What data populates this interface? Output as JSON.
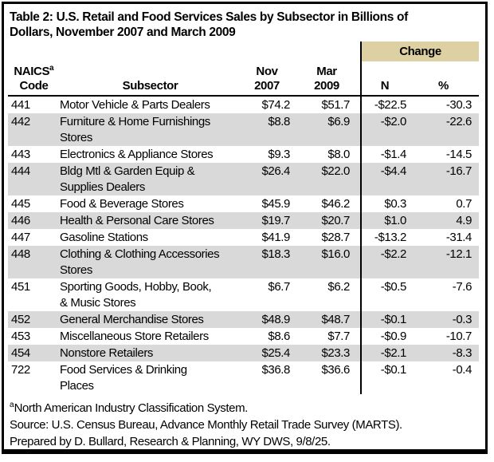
{
  "title": "Table 2: U.S. Retail and Food Services Sales by Subsector in Billions of\nDollars, November 2007 and March 2009",
  "table": {
    "change_label": "Change",
    "columns": {
      "naics": "NAICS",
      "naics_sup": "a",
      "code": "Code",
      "subsector": "Subsector",
      "nov_month": "Nov",
      "nov_year": "2007",
      "mar_month": "Mar",
      "mar_year": "2009",
      "n": "N",
      "pct": "%"
    },
    "rows": [
      {
        "code": "441",
        "subsector": "Motor Vehicle & Parts Dealers",
        "nov": "$74.2",
        "mar": "$51.7",
        "n": "-$22.5",
        "pct": "-30.3",
        "shaded": false
      },
      {
        "code": "442",
        "subsector": "Furniture & Home Furnishings\nStores",
        "nov": "$8.8",
        "mar": "$6.9",
        "n": "-$2.0",
        "pct": "-22.6",
        "shaded": true
      },
      {
        "code": "443",
        "subsector": "Electronics & Appliance Stores",
        "nov": "$9.3",
        "mar": "$8.0",
        "n": "-$1.4",
        "pct": "-14.5",
        "shaded": false
      },
      {
        "code": "444",
        "subsector": "Bldg Mtl & Garden Equip &\nSupplies Dealers",
        "nov": "$26.4",
        "mar": "$22.0",
        "n": "-$4.4",
        "pct": "-16.7",
        "shaded": true
      },
      {
        "code": "445",
        "subsector": "Food & Beverage Stores",
        "nov": "$45.9",
        "mar": "$46.2",
        "n": "$0.3",
        "pct": "0.7",
        "shaded": false
      },
      {
        "code": "446",
        "subsector": "Health & Personal Care Stores",
        "nov": "$19.7",
        "mar": "$20.7",
        "n": "$1.0",
        "pct": "4.9",
        "shaded": true
      },
      {
        "code": "447",
        "subsector": "Gasoline Stations",
        "nov": "$41.9",
        "mar": "$28.7",
        "n": "-$13.2",
        "pct": "-31.4",
        "shaded": false
      },
      {
        "code": "448",
        "subsector": "Clothing & Clothing Accessories\nStores",
        "nov": "$18.3",
        "mar": "$16.0",
        "n": "-$2.2",
        "pct": "-12.1",
        "shaded": true
      },
      {
        "code": "451",
        "subsector": "Sporting Goods, Hobby, Book,\n& Music Stores",
        "nov": "$6.7",
        "mar": "$6.2",
        "n": "-$0.5",
        "pct": "-7.6",
        "shaded": false
      },
      {
        "code": "452",
        "subsector": "General Merchandise Stores",
        "nov": "$48.9",
        "mar": "$48.7",
        "n": "-$0.1",
        "pct": "-0.3",
        "shaded": true
      },
      {
        "code": "453",
        "subsector": "Miscellaneous Store Retailers",
        "nov": "$8.6",
        "mar": "$7.7",
        "n": "-$0.9",
        "pct": "-10.7",
        "shaded": false
      },
      {
        "code": "454",
        "subsector": "Nonstore Retailers",
        "nov": "$25.4",
        "mar": "$23.3",
        "n": "-$2.1",
        "pct": "-8.3",
        "shaded": true
      },
      {
        "code": "722",
        "subsector": "Food Services & Drinking\nPlaces",
        "nov": "$36.8",
        "mar": "$36.6",
        "n": "-$0.1",
        "pct": "-0.4",
        "shaded": false
      }
    ]
  },
  "footnotes": {
    "naics_sup": "a",
    "naics_text": "North American Industry Classification System.",
    "source": "Source: U.S. Census Bureau, Advance Monthly Retail Trade Survey (MARTS).",
    "prepared": "Prepared by D. Bullard, Research & Planning, WY DWS, 9/8/25."
  },
  "colors": {
    "change_bg": "#ddd1a3",
    "stripe": "#d9d9d9",
    "border": "#000000"
  }
}
